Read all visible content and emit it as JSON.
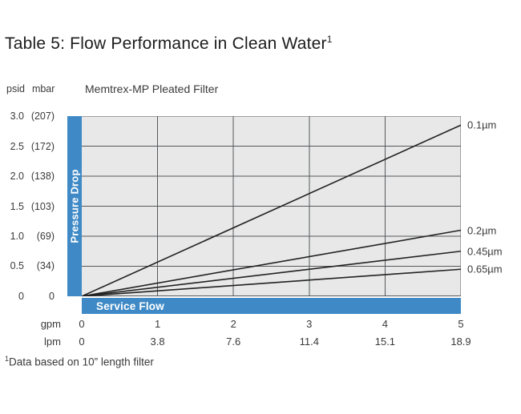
{
  "page": {
    "title": "Table 5: Flow Performance in Clean Water",
    "title_superscript": "1",
    "footnote_superscript": "1",
    "footnote": "Data based on 10” length filter"
  },
  "colors": {
    "accent_blue": "#3f8ac6",
    "plot_background": "#e8e8e8",
    "grid_line": "#55585b",
    "series_line": "#222222"
  },
  "chart_data": {
    "type": "line",
    "title": "Memtrex-MP Pleated Filter",
    "xlabel": "Service Flow",
    "ylabel": "Pressure Drop",
    "xlim": [
      0,
      5
    ],
    "ylim": [
      0,
      3.0
    ],
    "grid": true,
    "y_axis": {
      "unit_labels": [
        "psid",
        "mbar"
      ],
      "ticks": [
        {
          "psid": "3.0",
          "mbar": "(207)"
        },
        {
          "psid": "2.5",
          "mbar": "(172)"
        },
        {
          "psid": "2.0",
          "mbar": "(138)"
        },
        {
          "psid": "1.5",
          "mbar": "(103)"
        },
        {
          "psid": "1.0",
          "mbar": "(69)"
        },
        {
          "psid": "0.5",
          "mbar": "(34)"
        },
        {
          "psid": "0",
          "mbar": "0"
        }
      ]
    },
    "x_axis": {
      "rows": [
        {
          "unit": "gpm",
          "ticks": [
            "0",
            "1",
            "2",
            "3",
            "4",
            "5"
          ]
        },
        {
          "unit": "lpm",
          "ticks": [
            "0",
            "3.8",
            "7.6",
            "11.4",
            "15.1",
            "18.9"
          ]
        }
      ]
    },
    "series": [
      {
        "name": "0.1µm",
        "x": [
          0,
          5
        ],
        "y": [
          0,
          2.85
        ]
      },
      {
        "name": "0.2µm",
        "x": [
          0,
          5
        ],
        "y": [
          0,
          1.1
        ]
      },
      {
        "name": "0.45µm",
        "x": [
          0,
          5
        ],
        "y": [
          0,
          0.75
        ]
      },
      {
        "name": "0.65µm",
        "x": [
          0,
          5
        ],
        "y": [
          0,
          0.45
        ]
      }
    ]
  }
}
